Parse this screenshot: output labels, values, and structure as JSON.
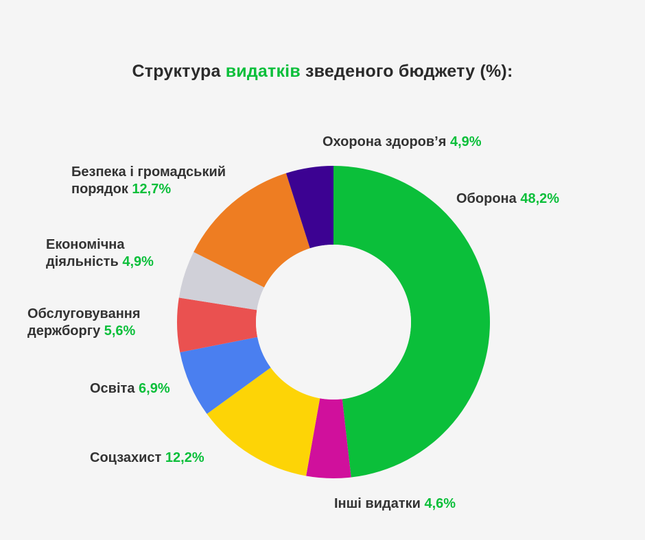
{
  "title": {
    "prefix": "Структура ",
    "accent": "видатків",
    "suffix": " зведеного бюджету (%):"
  },
  "colors": {
    "accent": "#0bbf3a",
    "text": "#333333",
    "background": "#f5f5f5"
  },
  "chart_data": {
    "type": "pie",
    "variant": "donut",
    "title": "Структура видатків зведеного бюджету (%):",
    "unit": "%",
    "slices": [
      {
        "label": "Оборона",
        "value": 48.2,
        "display": "48,2%",
        "color": "#0bbf3a"
      },
      {
        "label": "Інші видатки",
        "value": 4.6,
        "display": "4,6%",
        "color": "#d0109c"
      },
      {
        "label": "Соцзахист",
        "value": 12.2,
        "display": "12,2%",
        "color": "#fdd406"
      },
      {
        "label": "Освіта",
        "value": 6.9,
        "display": "6,9%",
        "color": "#4a7ff0"
      },
      {
        "label": "Обслуговування держборгу",
        "value": 5.6,
        "display": "5,6%",
        "color": "#ea5150"
      },
      {
        "label": "Економічна діяльність",
        "value": 4.9,
        "display": "4,9%",
        "color": "#d0d0d8"
      },
      {
        "label": "Безпека і громадський порядок",
        "value": 12.7,
        "display": "12,7%",
        "color": "#ee7d22"
      },
      {
        "label": "Охорона здоров’я",
        "value": 4.9,
        "display": "4,9%",
        "color": "#3c0292"
      }
    ]
  },
  "labels": {
    "defense": {
      "name": "Оборона ",
      "value": "48,2%"
    },
    "other": {
      "name": "Інші видатки ",
      "value": "4,6%"
    },
    "social": {
      "name": "Соцзахист ",
      "value": "12,2%"
    },
    "education": {
      "name": "Освіта ",
      "value": "6,9%"
    },
    "debt": {
      "line1": "Обслуговування",
      "line2": "держборгу ",
      "value": "5,6%"
    },
    "economy": {
      "line1": "Економічна",
      "line2": "діяльність ",
      "value": "4,9%"
    },
    "security": {
      "line1": "Безпека і громадський",
      "line2": "порядок ",
      "value": "12,7%"
    },
    "health": {
      "name": "Охорона здоров’я ",
      "value": "4,9%"
    }
  }
}
